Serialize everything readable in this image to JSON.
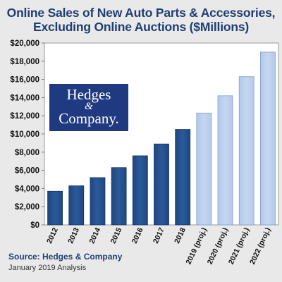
{
  "title_line1": "Online Sales of New Auto Parts & Accessories,",
  "title_line2": "Excluding Online Auctions ($Millions)",
  "logo": {
    "line1": "Hedges",
    "line2": "&",
    "line3": "Company."
  },
  "source": "Source: Hedges & Company",
  "note": "January 2019 Analysis",
  "colors": {
    "actual_bar": "#2b5a9a",
    "projected_bar": "#c5d7f0",
    "title": "#1f3f73",
    "logo_bg": "#203a82"
  },
  "chart_data": {
    "type": "bar",
    "title": "Online Sales of New Auto Parts & Accessories, Excluding Online Auctions ($Millions)",
    "categories": [
      "2012",
      "2013",
      "2014",
      "2015",
      "2016",
      "2017",
      "2018",
      "2019 (proj.)",
      "2020 (proj.)",
      "2021 (proj.)",
      "2022 (proj.)"
    ],
    "values": [
      3700,
      4300,
      5200,
      6300,
      7600,
      8900,
      10500,
      12300,
      14200,
      16300,
      19000
    ],
    "projected": [
      false,
      false,
      false,
      false,
      false,
      false,
      false,
      true,
      true,
      true,
      true
    ],
    "ylim": [
      0,
      20000
    ],
    "yticks": [
      0,
      2000,
      4000,
      6000,
      8000,
      10000,
      12000,
      14000,
      16000,
      18000,
      20000
    ],
    "ytick_labels": [
      "$0",
      "$2,000",
      "$4,000",
      "$6,000",
      "$8,000",
      "$10,000",
      "$12,000",
      "$14,000",
      "$16,000",
      "$18,000",
      "$20,000"
    ],
    "xlabel": "",
    "ylabel": "",
    "grid": false
  }
}
